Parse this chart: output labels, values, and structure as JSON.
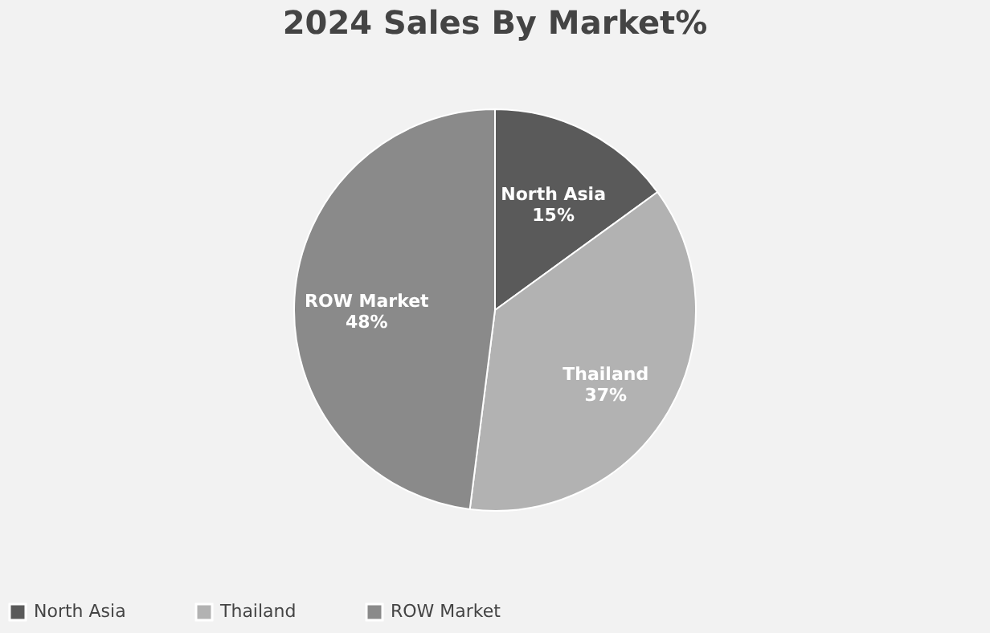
{
  "chart_data": {
    "type": "pie",
    "title": "2024 Sales By Market%",
    "categories": [
      "North Asia",
      "Thailand",
      "ROW Market"
    ],
    "values": [
      15,
      37,
      48
    ],
    "value_labels": [
      "15%",
      "37%",
      "48%"
    ],
    "colors": [
      "#5a5a5a",
      "#b2b2b2",
      "#8a8a8a"
    ],
    "legend": "bottom"
  }
}
